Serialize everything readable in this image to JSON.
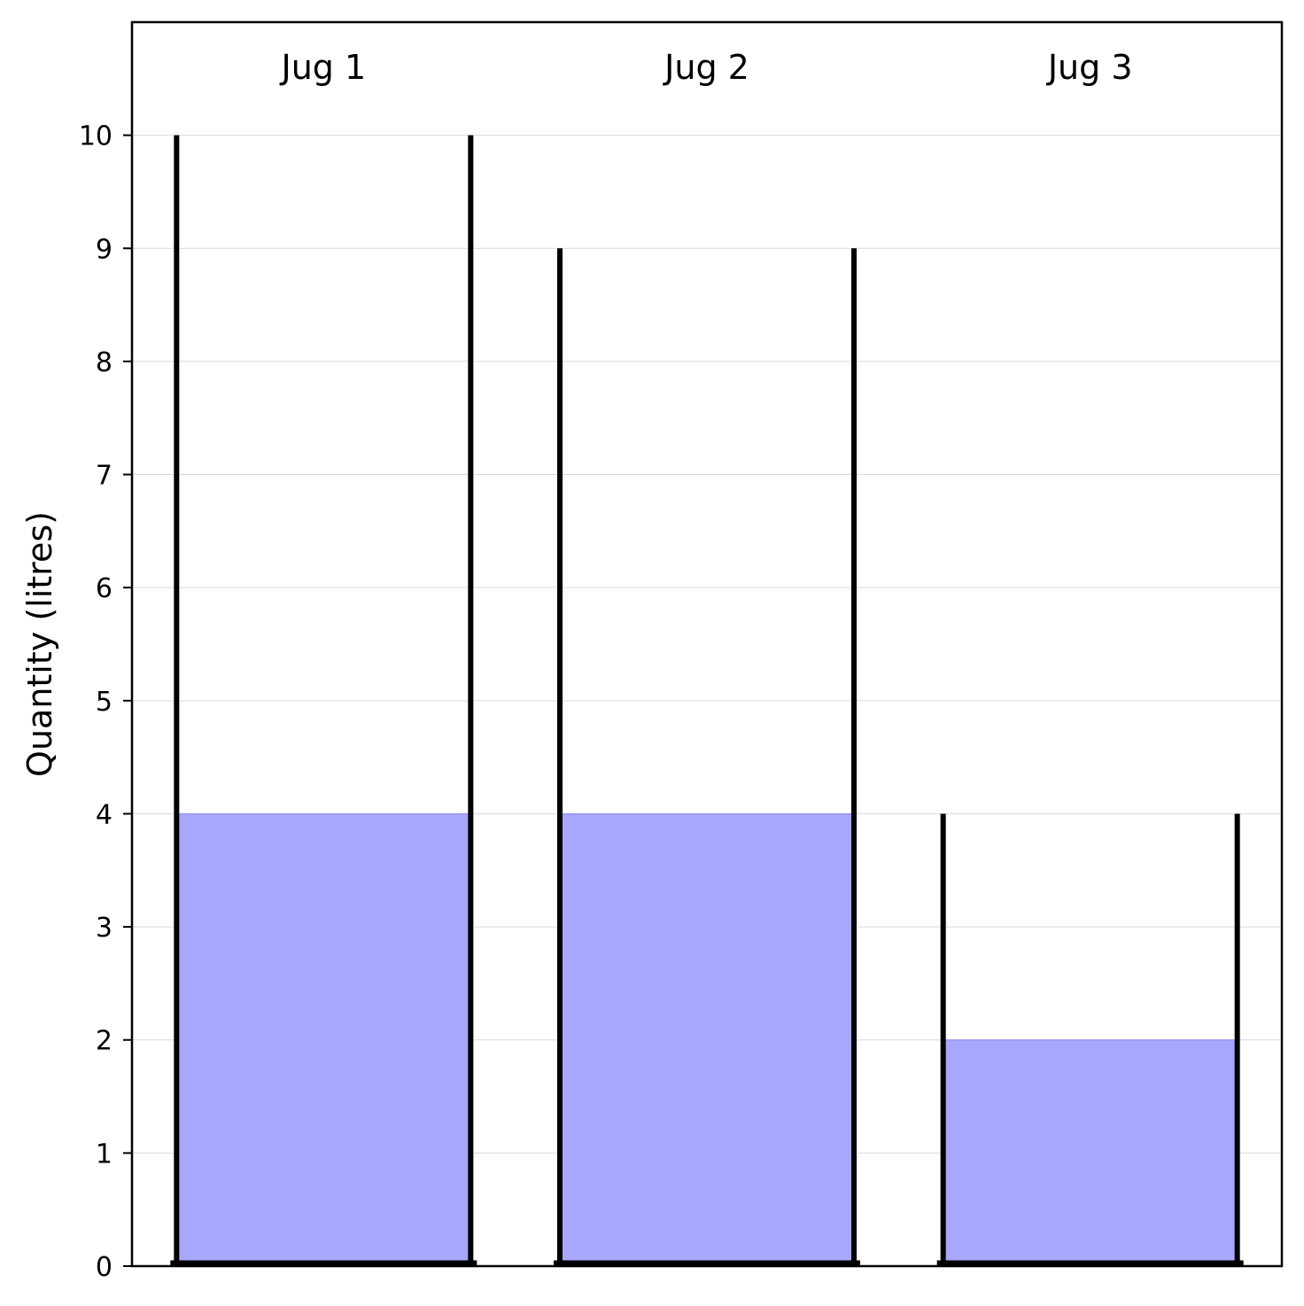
{
  "chart_data": {
    "type": "bar",
    "title": "",
    "xlabel": "",
    "ylabel": "Quantity (litres)",
    "ylim": [
      0,
      11
    ],
    "yticks": [
      0,
      1,
      2,
      3,
      4,
      5,
      6,
      7,
      8,
      9,
      10
    ],
    "grid": "horizontal",
    "categories": [
      "Jug 1",
      "Jug 2",
      "Jug 3"
    ],
    "series": [
      {
        "name": "",
        "values": [
          4,
          4,
          2
        ]
      }
    ],
    "capacities": [
      10,
      9,
      4
    ],
    "colors": {
      "fill": "#a7a7fb",
      "fill_edge": "#8888ee",
      "jug_wall": "#000000",
      "grid": "#d9d9d9"
    }
  }
}
